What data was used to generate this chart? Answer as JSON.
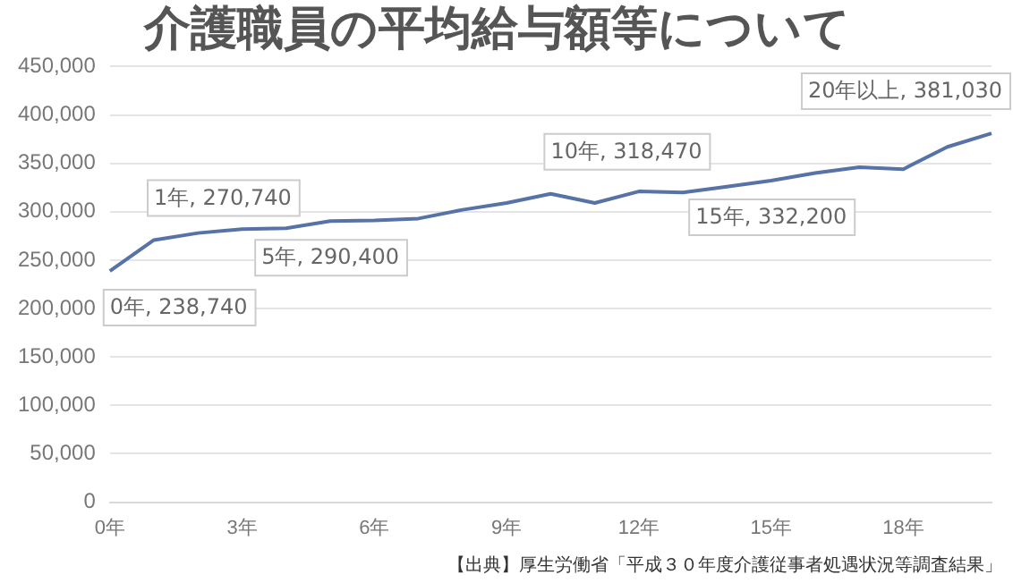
{
  "chart_data": {
    "type": "line",
    "title": "介護職員の平均給与額等について",
    "categories": [
      "0年",
      null,
      null,
      "3年",
      null,
      null,
      "6年",
      null,
      null,
      "9年",
      null,
      null,
      "12年",
      null,
      null,
      "15年",
      null,
      null,
      "18年",
      null,
      null
    ],
    "series": [
      {
        "color": "#5672a6",
        "values": [
          238740,
          270740,
          278000,
          282000,
          283000,
          290400,
          291000,
          293000,
          302000,
          309000,
          318470,
          309000,
          321000,
          320000,
          326000,
          332200,
          340000,
          346000,
          344000,
          367000,
          381030
        ],
        "value_labels": [
          "0年, 238,740",
          "1年, 270,740",
          null,
          null,
          null,
          "5年, 290,400",
          null,
          null,
          null,
          null,
          "10年, 318,470",
          null,
          null,
          null,
          null,
          "15年, 332,200",
          null,
          null,
          null,
          null,
          "20年以上, 381,030"
        ]
      }
    ],
    "ylim": [
      0,
      450000
    ],
    "yticks": [
      0,
      {
        "value": 50000,
        "label": "50,000"
      },
      {
        "value": 100000,
        "label": "100,000"
      },
      {
        "value": 150000,
        "label": "150,000"
      },
      {
        "value": 200000,
        "label": "200,000"
      },
      {
        "value": 250000,
        "label": "250,000"
      },
      {
        "value": 300000,
        "label": "300,000"
      },
      {
        "value": 350000,
        "label": "350,000"
      },
      {
        "value": 400000,
        "label": "400,000"
      },
      {
        "value": 450000,
        "label": "450,000"
      }
    ],
    "grid": "y",
    "legend": false,
    "marker": "none",
    "line_style": "solid",
    "annotations": [
      "【出典】厚生労働省「平成３０年度介護従事者処遇状況等調査結果」"
    ]
  }
}
